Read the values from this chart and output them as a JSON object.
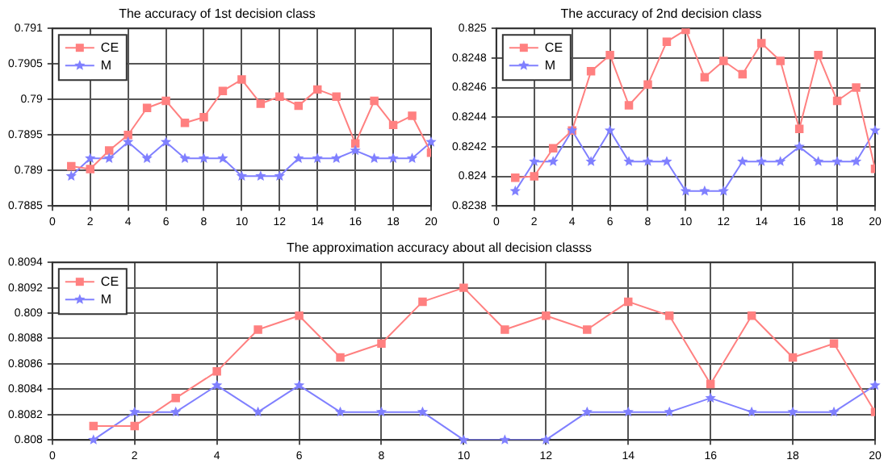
{
  "chart_data": [
    {
      "type": "line",
      "title": "The accuracy of 1st decision class",
      "x": [
        1,
        2,
        3,
        4,
        5,
        6,
        7,
        8,
        9,
        10,
        11,
        12,
        13,
        14,
        15,
        16,
        17,
        18,
        19,
        20
      ],
      "xlim": [
        0,
        20
      ],
      "xticks": [
        0,
        2,
        4,
        6,
        8,
        10,
        12,
        14,
        16,
        18,
        20
      ],
      "ylim": [
        0.7885,
        0.791
      ],
      "yticks": [
        0.7885,
        0.789,
        0.7895,
        0.79,
        0.7905,
        0.791
      ],
      "grid": true,
      "legend": "top left",
      "line_style": "solid",
      "series": [
        {
          "name": "CE",
          "color": "#ff8080",
          "marker": "square",
          "values": [
            0.78906,
            0.78902,
            0.78928,
            0.7895,
            0.78988,
            0.78998,
            0.78967,
            0.78975,
            0.79012,
            0.79028,
            0.78994,
            0.79004,
            0.78991,
            0.79014,
            0.79004,
            0.78938,
            0.78998,
            0.78964,
            0.78977,
            0.78925
          ]
        },
        {
          "name": "M",
          "color": "#8080ff",
          "marker": "star",
          "values": [
            0.78892,
            0.78917,
            0.78917,
            0.7894,
            0.78917,
            0.7894,
            0.78917,
            0.78917,
            0.78917,
            0.78892,
            0.78892,
            0.78892,
            0.78917,
            0.78917,
            0.78917,
            0.78928,
            0.78917,
            0.78917,
            0.78917,
            0.7894
          ]
        }
      ]
    },
    {
      "type": "line",
      "title": "The accuracy of 2nd decision class",
      "x": [
        1,
        2,
        3,
        4,
        5,
        6,
        7,
        8,
        9,
        10,
        11,
        12,
        13,
        14,
        15,
        16,
        17,
        18,
        19,
        20
      ],
      "xlim": [
        0,
        20
      ],
      "xticks": [
        0,
        2,
        4,
        6,
        8,
        10,
        12,
        14,
        16,
        18,
        20
      ],
      "ylim": [
        0.8238,
        0.825
      ],
      "yticks": [
        0.8238,
        0.824,
        0.8242,
        0.8244,
        0.8246,
        0.8248,
        0.825
      ],
      "grid": true,
      "legend": "top left",
      "line_style": "solid",
      "series": [
        {
          "name": "CE",
          "color": "#ff8080",
          "marker": "square",
          "values": [
            0.82399,
            0.824,
            0.82419,
            0.82431,
            0.82471,
            0.82482,
            0.82448,
            0.82462,
            0.82491,
            0.82499,
            0.82467,
            0.82478,
            0.82469,
            0.8249,
            0.82478,
            0.82432,
            0.82482,
            0.82451,
            0.8246,
            0.82405
          ]
        },
        {
          "name": "M",
          "color": "#8080ff",
          "marker": "star",
          "values": [
            0.8239,
            0.8241,
            0.8241,
            0.82431,
            0.8241,
            0.82431,
            0.8241,
            0.8241,
            0.8241,
            0.8239,
            0.8239,
            0.8239,
            0.8241,
            0.8241,
            0.8241,
            0.8242,
            0.8241,
            0.8241,
            0.8241,
            0.82431
          ]
        }
      ]
    },
    {
      "type": "line",
      "title": "The approximation accuracy about all decision classs",
      "x": [
        1,
        2,
        3,
        4,
        5,
        6,
        7,
        8,
        9,
        10,
        11,
        12,
        13,
        14,
        15,
        16,
        17,
        18,
        19,
        20
      ],
      "xlim": [
        0,
        20
      ],
      "xticks": [
        0,
        2,
        4,
        6,
        8,
        10,
        12,
        14,
        16,
        18,
        20
      ],
      "ylim": [
        0.808,
        0.8094
      ],
      "yticks": [
        0.808,
        0.8082,
        0.8084,
        0.8086,
        0.8088,
        0.809,
        0.8092,
        0.8094
      ],
      "grid": true,
      "legend": "top left",
      "line_style": "solid",
      "series": [
        {
          "name": "CE",
          "color": "#ff8080",
          "marker": "square",
          "values": [
            0.80811,
            0.80811,
            0.80833,
            0.80854,
            0.80887,
            0.80898,
            0.80865,
            0.80876,
            0.80909,
            0.8092,
            0.80887,
            0.80898,
            0.80887,
            0.80909,
            0.80898,
            0.80844,
            0.80898,
            0.80865,
            0.80876,
            0.80822
          ]
        },
        {
          "name": "M",
          "color": "#8080ff",
          "marker": "star",
          "values": [
            0.808,
            0.80822,
            0.80822,
            0.80843,
            0.80822,
            0.80843,
            0.80822,
            0.80822,
            0.80822,
            0.808,
            0.808,
            0.808,
            0.80822,
            0.80822,
            0.80822,
            0.80833,
            0.80822,
            0.80822,
            0.80822,
            0.80843
          ]
        }
      ]
    }
  ]
}
